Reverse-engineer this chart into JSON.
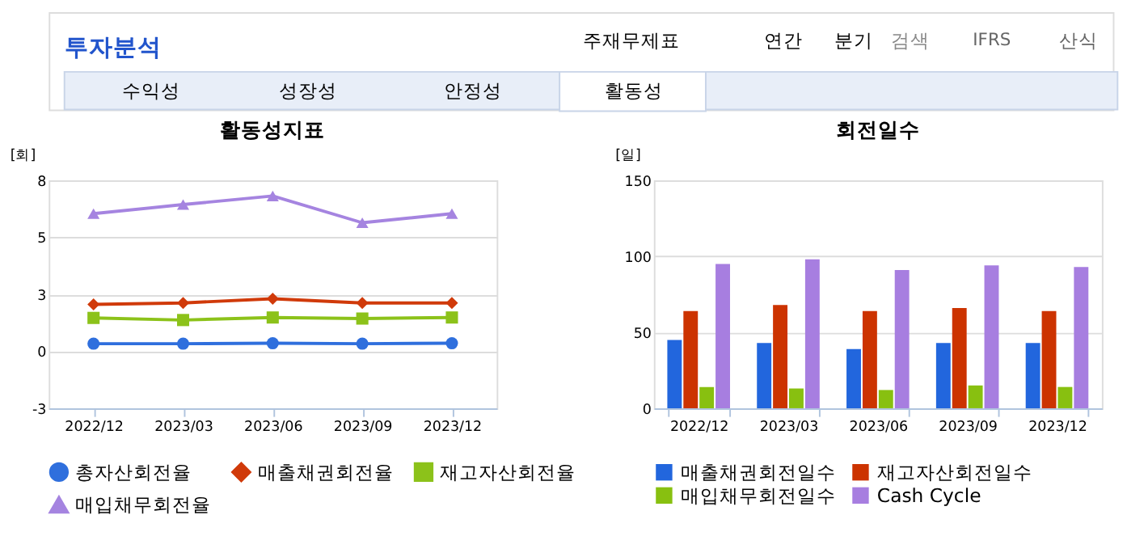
{
  "chart_data": [
    {
      "type": "other",
      "annotations": [
        "투자분석",
        "주재무제표",
        "연간",
        "분기",
        "검색",
        "IFRS",
        "산식",
        "수익성",
        "성장성",
        "안정성",
        "활동성"
      ]
    },
    {
      "type": "line",
      "title": "활동성지표",
      "ylabel": "[회]",
      "categories": [
        "2022/12",
        "2023/03",
        "2023/06",
        "2023/09",
        "2023/12"
      ],
      "series": [
        {
          "name": "총자산회전율",
          "color": "#2f6fdd",
          "marker": "circle",
          "values": [
            0.36,
            0.36,
            0.38,
            0.36,
            0.38
          ]
        },
        {
          "name": "매출채권회전율",
          "color": "#d03a0a",
          "marker": "diamond",
          "values": [
            2.22,
            2.29,
            2.49,
            2.29,
            2.29
          ]
        },
        {
          "name": "재고자산회전율",
          "color": "#8cc21a",
          "marker": "square",
          "values": [
            1.58,
            1.48,
            1.6,
            1.55,
            1.6
          ]
        },
        {
          "name": "매입채무회전율",
          "color": "#a584e0",
          "marker": "triangle",
          "values": [
            6.52,
            6.95,
            7.36,
            6.09,
            6.52
          ]
        }
      ],
      "ylim": [
        -2.7,
        8.1
      ],
      "yticks": [
        {
          "value": -2.7,
          "label": "-3"
        },
        0,
        {
          "value": 2.7,
          "label": "3"
        },
        {
          "value": 5.4,
          "label": "5"
        },
        {
          "value": 8.1,
          "label": "8"
        }
      ],
      "grid": "y",
      "legend": "bottom",
      "line_style": "solid"
    },
    {
      "type": "bar",
      "title": "회전일수",
      "ylabel": "[일]",
      "categories": [
        "2022/12",
        "2023/03",
        "2023/06",
        "2023/09",
        "2023/12"
      ],
      "series": [
        {
          "name": "매출채권회전일수",
          "color": "#2266dd",
          "values": [
            45,
            43,
            39,
            43,
            43
          ]
        },
        {
          "name": "재고자산회전일수",
          "color": "#cc3300",
          "values": [
            64,
            68,
            64,
            66,
            64
          ]
        },
        {
          "name": "매입채무회전일수",
          "color": "#88c010",
          "values": [
            14,
            13,
            12,
            15,
            14
          ]
        },
        {
          "name": "Cash Cycle",
          "color": "#a77ee0",
          "values": [
            95,
            98,
            91,
            94,
            93
          ]
        }
      ],
      "ylim": [
        0,
        150
      ],
      "yticks": [
        0,
        50,
        100,
        150
      ],
      "grid": "y",
      "legend": "bottom"
    }
  ]
}
